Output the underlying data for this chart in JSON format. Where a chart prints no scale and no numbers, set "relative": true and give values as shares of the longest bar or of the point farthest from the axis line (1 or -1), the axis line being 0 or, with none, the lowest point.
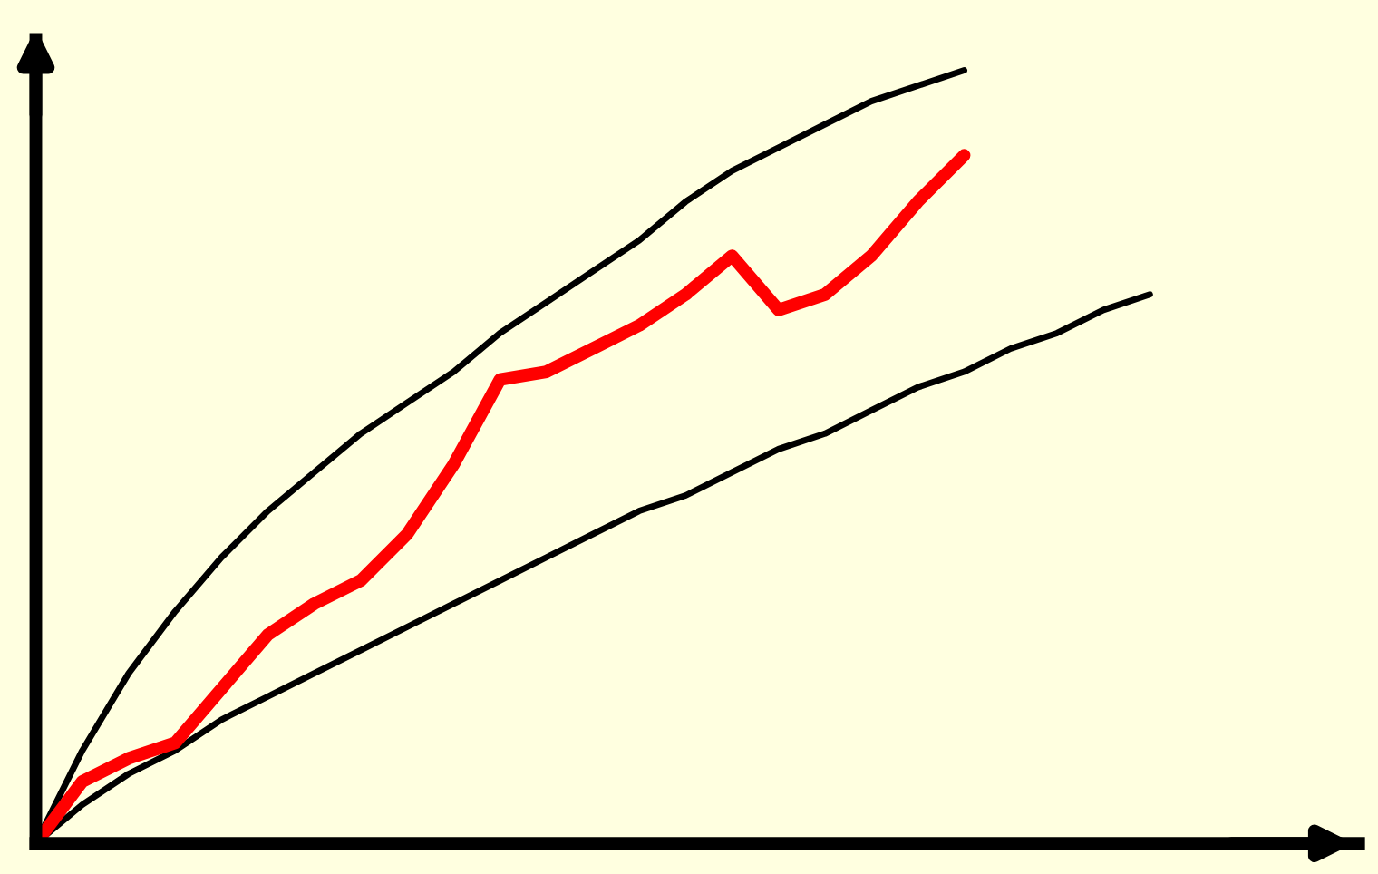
{
  "chart_data": {
    "type": "line",
    "relative": true,
    "grid": false,
    "marker": "none",
    "line_style": "solid",
    "categories": [
      null,
      null,
      null,
      null,
      null,
      null,
      null,
      null,
      null,
      null,
      null,
      null,
      null,
      null,
      null,
      null,
      null,
      null,
      null,
      null,
      null,
      null,
      null,
      null,
      null,
      null,
      null,
      null,
      null
    ],
    "series": [
      {
        "color": "#000000",
        "values": [
          0,
          0.12,
          0.22,
          0.3,
          0.37,
          0.43,
          0.48,
          0.53,
          0.57,
          0.61,
          0.66,
          0.7,
          0.74,
          0.78,
          0.83,
          0.87,
          0.9,
          0.93,
          0.96,
          0.98,
          1.0,
          null,
          null,
          null,
          null,
          null,
          null,
          null,
          null
        ]
      },
      {
        "color": "#000000",
        "values": [
          0,
          0.05,
          0.09,
          0.12,
          0.16,
          0.19,
          0.22,
          0.25,
          0.28,
          0.31,
          0.34,
          0.37,
          0.4,
          0.43,
          0.45,
          0.48,
          0.51,
          0.53,
          0.56,
          0.59,
          0.61,
          0.64,
          0.66,
          0.69,
          0.71,
          null,
          null,
          null,
          null
        ]
      },
      {
        "color": "#ff0000",
        "values": [
          0,
          0.08,
          0.11,
          0.13,
          0.2,
          0.27,
          0.31,
          0.34,
          0.4,
          0.49,
          0.6,
          0.61,
          0.64,
          0.67,
          0.71,
          0.76,
          0.69,
          0.71,
          0.76,
          0.83,
          0.89,
          null,
          null,
          null,
          null,
          null,
          null,
          null,
          null
        ]
      }
    ]
  }
}
